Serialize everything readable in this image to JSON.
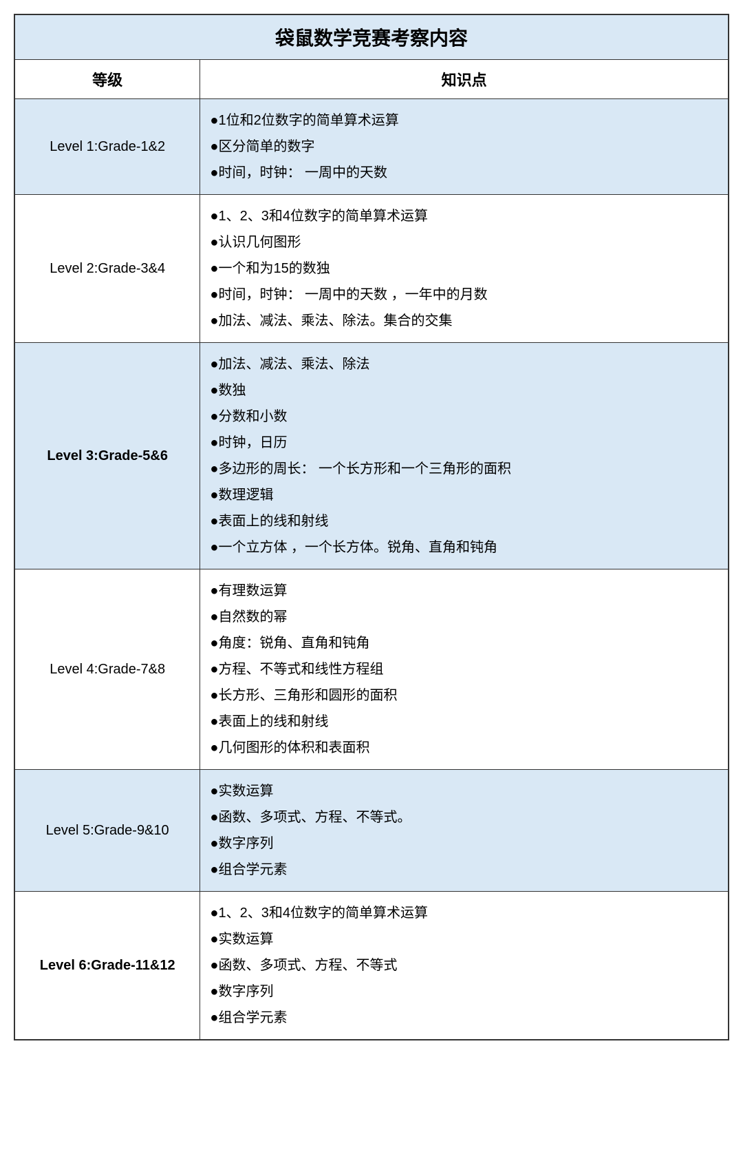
{
  "title": "袋鼠数学竞赛考察内容",
  "headers": {
    "level": "等级",
    "topics": "知识点"
  },
  "colors": {
    "header_bg": "#d9e8f5",
    "alt_row_bg": "#d9e8f5",
    "plain_bg": "#ffffff",
    "border": "#333333",
    "text": "#000000"
  },
  "typography": {
    "title_fontsize": 28,
    "header_fontsize": 22,
    "body_fontsize": 20,
    "title_fontweight": 700,
    "header_fontweight": 700
  },
  "layout": {
    "level_col_width_pct": 26,
    "line_height": 1.9
  },
  "rows": [
    {
      "level": "Level 1:Grade-1&2",
      "bold": false,
      "bg": "#d9e8f5",
      "items": [
        "1位和2位数字的简单算术运算",
        "区分简单的数字",
        "时间，时钟： 一周中的天数"
      ]
    },
    {
      "level": "Level 2:Grade-3&4",
      "bold": false,
      "bg": "#ffffff",
      "items": [
        "1、2、3和4位数字的简单算术运算",
        "认识几何图形",
        "一个和为15的数独",
        "时间，时钟： 一周中的天数 ，一年中的月数",
        "加法、减法、乘法、除法。集合的交集"
      ]
    },
    {
      "level": "Level 3:Grade-5&6",
      "bold": true,
      "bg": "#d9e8f5",
      "items": [
        "加法、减法、乘法、除法",
        "数独",
        "分数和小数",
        "时钟，日历",
        "多边形的周长： 一个长方形和一个三角形的面积",
        "数理逻辑",
        "表面上的线和射线",
        "一个立方体 ，一个长方体。锐角、直角和钝角"
      ]
    },
    {
      "level": "Level 4:Grade-7&8",
      "bold": false,
      "bg": "#ffffff",
      "items": [
        "有理数运算",
        "自然数的幂",
        "角度：锐角、直角和钝角",
        "方程、不等式和线性方程组",
        "长方形、三角形和圆形的面积",
        "表面上的线和射线",
        "几何图形的体积和表面积"
      ]
    },
    {
      "level": "Level 5:Grade-9&10",
      "bold": false,
      "bg": "#d9e8f5",
      "items": [
        "实数运算",
        "函数、多项式、方程、不等式。",
        "数字序列",
        "组合学元素"
      ]
    },
    {
      "level": "Level 6:Grade-11&12",
      "bold": true,
      "bg": "#ffffff",
      "items": [
        "1、2、3和4位数字的简单算术运算",
        "实数运算",
        "函数、多项式、方程、不等式",
        "数字序列",
        "组合学元素"
      ]
    }
  ]
}
